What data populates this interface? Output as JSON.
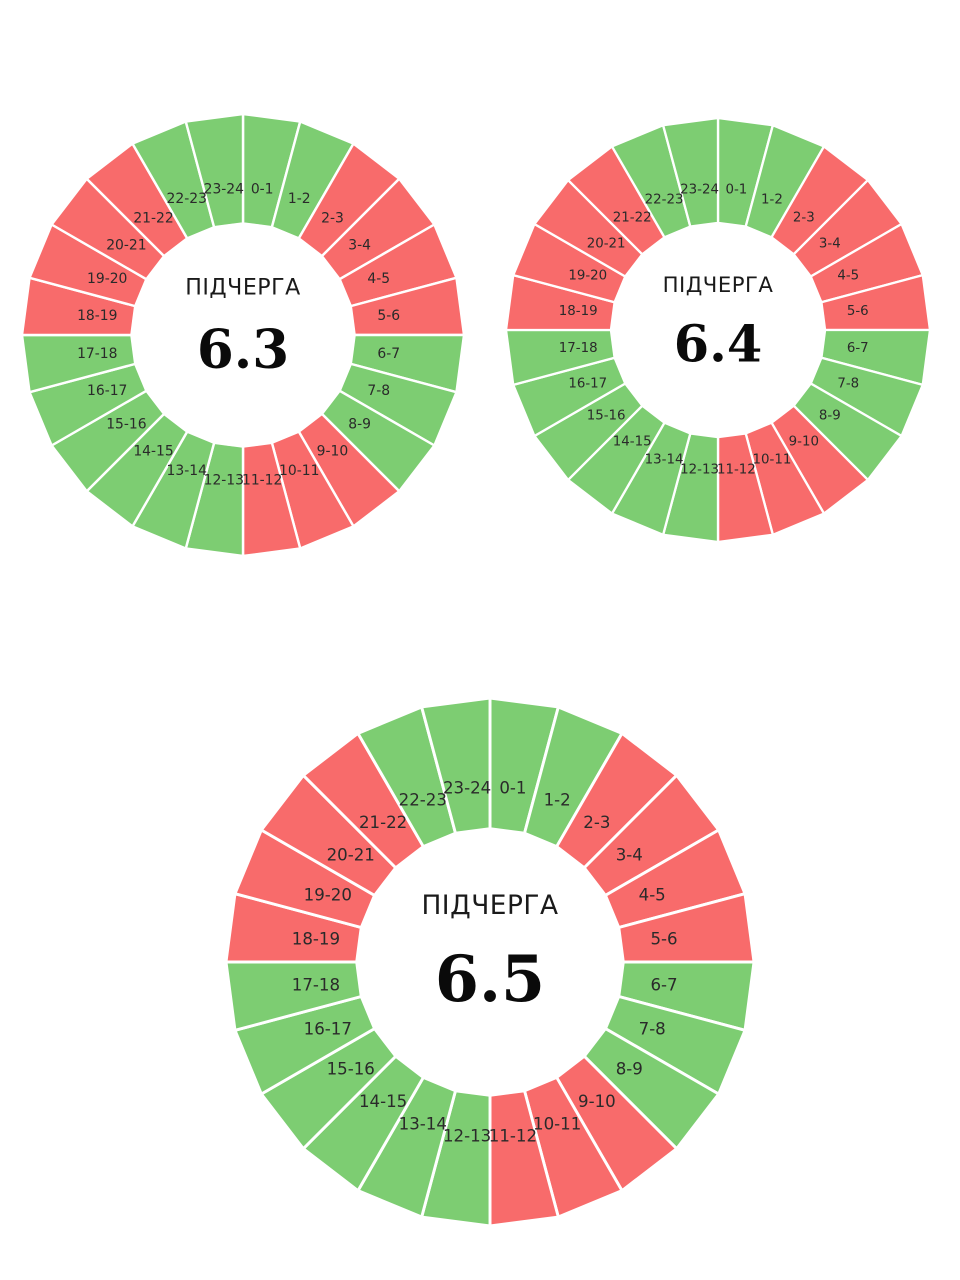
{
  "colors": {
    "on": "#7dcd72",
    "off": "#f86b6b",
    "divider": "#ffffff",
    "center": "#ffffff"
  },
  "hour_labels": [
    "0-1",
    "1-2",
    "2-3",
    "3-4",
    "4-5",
    "5-6",
    "6-7",
    "7-8",
    "8-9",
    "9-10",
    "10-11",
    "11-12",
    "12-13",
    "13-14",
    "14-15",
    "15-16",
    "16-17",
    "17-18",
    "18-19",
    "19-20",
    "20-21",
    "21-22",
    "22-23",
    "23-24"
  ],
  "schedules": [
    {
      "caption": "ПІДЧЕРГА",
      "queue": "6.3",
      "states": [
        "on",
        "on",
        "off",
        "off",
        "off",
        "off",
        "on",
        "on",
        "on",
        "off",
        "off",
        "off",
        "on",
        "on",
        "on",
        "on",
        "on",
        "on",
        "off",
        "off",
        "off",
        "off",
        "on",
        "on"
      ]
    },
    {
      "caption": "ПІДЧЕРГА",
      "queue": "6.4",
      "states": [
        "on",
        "on",
        "off",
        "off",
        "off",
        "off",
        "on",
        "on",
        "on",
        "off",
        "off",
        "off",
        "on",
        "on",
        "on",
        "on",
        "on",
        "on",
        "off",
        "off",
        "off",
        "off",
        "on",
        "on"
      ]
    },
    {
      "caption": "ПІДЧЕРГА",
      "queue": "6.5",
      "states": [
        "on",
        "on",
        "off",
        "off",
        "off",
        "off",
        "on",
        "on",
        "on",
        "off",
        "off",
        "off",
        "on",
        "on",
        "on",
        "on",
        "on",
        "on",
        "off",
        "off",
        "off",
        "off",
        "on",
        "on"
      ]
    }
  ]
}
